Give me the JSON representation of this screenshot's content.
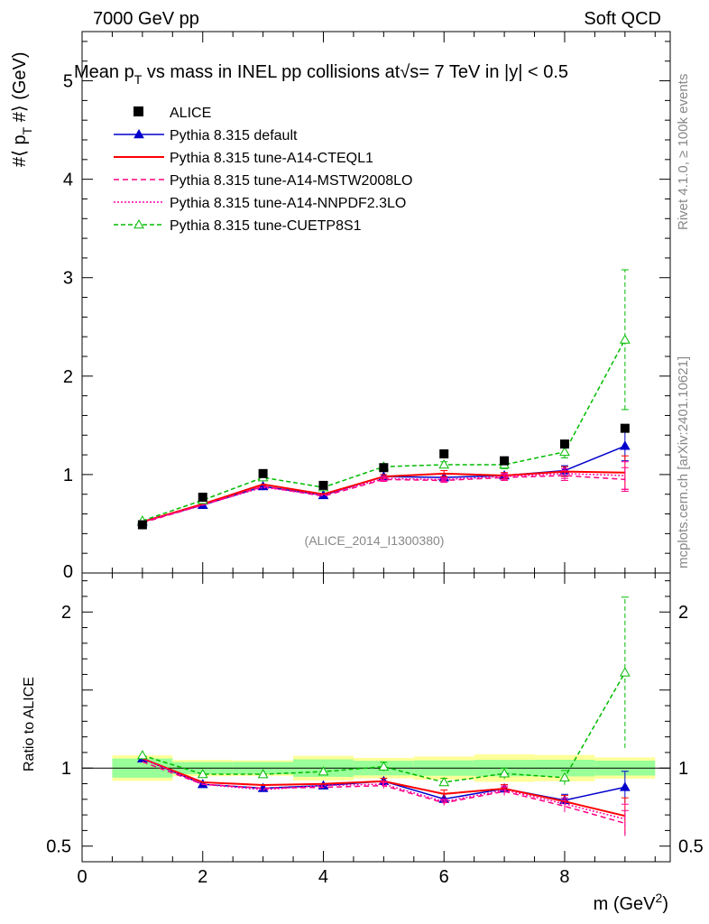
{
  "header": {
    "energy_label": "7000 GeV pp",
    "category_label": "Soft QCD"
  },
  "side_labels": {
    "rivet": "Rivet 4.1.0, ≥ 100k events",
    "mcplots": "mcplots.cern.ch [arXiv:2401.10621]"
  },
  "watermark": "(ALICE_2014_I1300380)",
  "chart_data": {
    "type": "line",
    "title": "Mean p_T vs mass in INEL pp collisions at √s = 7 TeV in |y| < 0.5",
    "title_parts": {
      "pre": "Mean p",
      "sub": "T",
      "mid": " vs mass in INEL pp collisions at",
      "sqrt": "√s",
      "post": "=  7 TeV in |y| < 0.5"
    },
    "xlabel": "m (GeV²)",
    "xlabel_parts": {
      "main": "m (GeV",
      "sup": "2",
      "close": ")"
    },
    "ylabel": "#⟨ p_T #⟩ (GeV)",
    "ylabel_parts": {
      "pre": "#⟨ p",
      "sub": "T",
      "post": " #⟩ (GeV)"
    },
    "ratio_ylabel": "Ratio to ALICE",
    "xlim": [
      0,
      9.75
    ],
    "ylim": [
      0,
      5.5
    ],
    "ratio_ylim": [
      0.4,
      2.25
    ],
    "x_ticks": [
      0,
      2,
      4,
      6,
      8
    ],
    "y_ticks": [
      1,
      2,
      3,
      4,
      5
    ],
    "y_tick_labels": [
      "1",
      "2",
      "3",
      "4",
      "5"
    ],
    "ratio_ticks": [
      0.5,
      1,
      2
    ],
    "ratio_tick_labels": [
      "0.5",
      "1",
      "2"
    ],
    "x": [
      1,
      2,
      3,
      4,
      5,
      6,
      7,
      8,
      9
    ],
    "bin_edges": [
      0.5,
      1.5,
      2.5,
      3.5,
      4.5,
      5.5,
      6.5,
      7.5,
      8.5,
      9.5
    ],
    "legend_position": "top-left",
    "data": {
      "name": "ALICE",
      "values": [
        0.49,
        0.77,
        1.01,
        0.89,
        1.07,
        1.21,
        1.14,
        1.31,
        1.47
      ],
      "band_stat": [
        0.03,
        0.03,
        0.04,
        0.05,
        0.05,
        0.06,
        0.06,
        0.07,
        0.07
      ],
      "band_total": [
        0.04,
        0.04,
        0.05,
        0.07,
        0.07,
        0.09,
        0.1,
        0.11,
        0.1
      ]
    },
    "series": [
      {
        "name": "Pythia 8.315 default",
        "color": "#0000cc",
        "dash": "",
        "marker": "triangle-filled",
        "values": [
          0.52,
          0.69,
          0.88,
          0.79,
          0.98,
          0.97,
          0.99,
          1.04,
          1.29
        ],
        "errors": [
          0,
          0,
          0,
          0,
          0,
          0,
          0,
          0.05,
          0.15
        ]
      },
      {
        "name": "Pythia 8.315 tune-A14-CTEQL1",
        "color": "#ff0000",
        "dash": "",
        "marker": "none",
        "values": [
          0.52,
          0.7,
          0.9,
          0.8,
          0.98,
          1.01,
          0.99,
          1.03,
          1.02
        ],
        "errors": [
          0,
          0,
          0,
          0,
          0.02,
          0.03,
          0.03,
          0.05,
          0.17
        ]
      },
      {
        "name": "Pythia 8.315 tune-A14-MSTW2008LO",
        "color": "#ff0080",
        "dash": "6,4",
        "marker": "none",
        "values": [
          0.51,
          0.69,
          0.88,
          0.78,
          0.95,
          0.94,
          0.97,
          0.99,
          0.95
        ],
        "errors": [
          0,
          0,
          0,
          0,
          0.02,
          0.02,
          0.03,
          0.05,
          0.12
        ]
      },
      {
        "name": "Pythia 8.315 tune-A14-NNPDF2.3LO",
        "color": "#ff00aa",
        "dash": "2,2",
        "marker": "none",
        "values": [
          0.52,
          0.69,
          0.87,
          0.79,
          0.96,
          0.95,
          0.98,
          1.01,
          0.99
        ],
        "errors": [
          0,
          0,
          0,
          0,
          0.02,
          0.02,
          0.03,
          0.05,
          0.14
        ]
      },
      {
        "name": "Pythia 8.315 tune-CUETP8S1",
        "color": "#00bb00",
        "dash": "5,3",
        "marker": "triangle-open",
        "values": [
          0.53,
          0.74,
          0.97,
          0.87,
          1.08,
          1.1,
          1.1,
          1.23,
          2.37
        ],
        "errors": [
          0,
          0,
          0,
          0,
          0.03,
          0.03,
          0.04,
          0.06,
          0.71
        ]
      }
    ]
  }
}
